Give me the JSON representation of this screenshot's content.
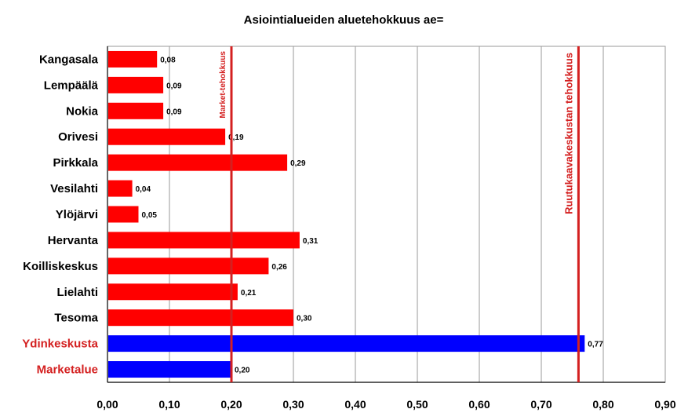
{
  "chart_data": {
    "type": "bar",
    "orientation": "horizontal",
    "title": "Asiointialueiden aluetehokkuus ae=",
    "categories": [
      "Kangasala",
      "Lempäälä",
      "Nokia",
      "Orivesi",
      "Pirkkala",
      "Vesilahti",
      "Ylöjärvi",
      "Hervanta",
      "Koilliskeskus",
      "Lielahti",
      "Tesoma",
      "Ydinkeskusta",
      "Marketalue"
    ],
    "values": [
      0.08,
      0.09,
      0.09,
      0.19,
      0.29,
      0.04,
      0.05,
      0.31,
      0.26,
      0.21,
      0.3,
      0.77,
      0.2
    ],
    "value_labels": [
      "0,08",
      "0,09",
      "0,09",
      "0,19",
      "0,29",
      "0,04",
      "0,05",
      "0,31",
      "0,26",
      "0,21",
      "0,30",
      "0,77",
      "0,20"
    ],
    "bar_colors": [
      "#ff0000",
      "#ff0000",
      "#ff0000",
      "#ff0000",
      "#ff0000",
      "#ff0000",
      "#ff0000",
      "#ff0000",
      "#ff0000",
      "#ff0000",
      "#ff0000",
      "#0000ff",
      "#0000ff"
    ],
    "category_label_colors": [
      "#000000",
      "#000000",
      "#000000",
      "#000000",
      "#000000",
      "#000000",
      "#000000",
      "#000000",
      "#000000",
      "#000000",
      "#000000",
      "#d42020",
      "#d42020"
    ],
    "xlim": [
      0,
      0.9
    ],
    "x_ticks": [
      0,
      0.1,
      0.2,
      0.3,
      0.4,
      0.5,
      0.6,
      0.7,
      0.8,
      0.9
    ],
    "x_tick_labels": [
      "0,00",
      "0,10",
      "0,20",
      "0,30",
      "0,40",
      "0,50",
      "0,60",
      "0,70",
      "0,80",
      "0,90"
    ],
    "grid": true,
    "reference_lines": [
      {
        "value": 0.2,
        "label": "Market-tehokkuus",
        "color": "#d42020"
      },
      {
        "value": 0.76,
        "label": "Ruutukaavakeskustan tehokkuus",
        "color": "#d42020"
      }
    ]
  }
}
